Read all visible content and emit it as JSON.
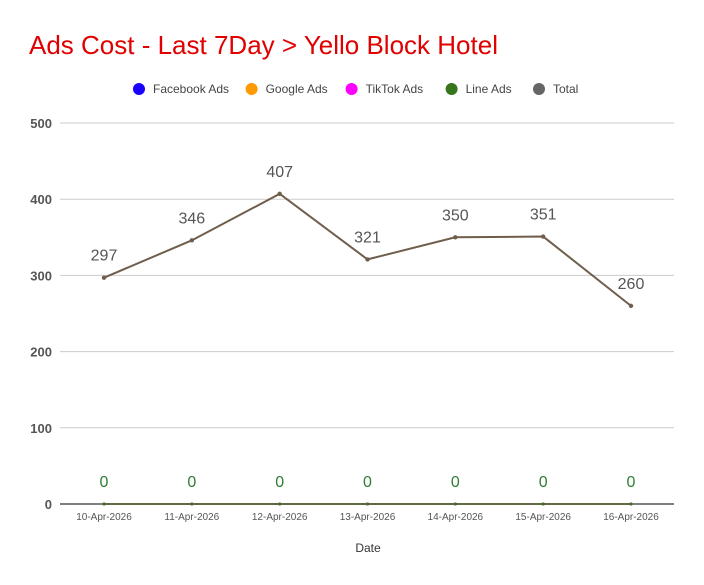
{
  "title": "Ads Cost - Last 7Day > Yello Block Hotel",
  "colors": {
    "title": "#e00000",
    "grid": "#cccccc",
    "axis": "#333333",
    "total_line": "#6f5e4b",
    "zero_label": "#2e7d32",
    "total_label": "#555555"
  },
  "chart_data": {
    "type": "line",
    "title": "Ads Cost - Last 7Day > Yello Block Hotel",
    "xlabel": "Date",
    "ylabel": "",
    "ylim": [
      0,
      500
    ],
    "yticks": [
      0,
      100,
      200,
      300,
      400,
      500
    ],
    "grid": true,
    "legend_position": "top",
    "categories": [
      "10-Apr-2026",
      "11-Apr-2026",
      "12-Apr-2026",
      "13-Apr-2026",
      "14-Apr-2026",
      "15-Apr-2026",
      "16-Apr-2026"
    ],
    "series": [
      {
        "name": "Facebook Ads",
        "color": "#1a00ff",
        "values": [
          0,
          0,
          0,
          0,
          0,
          0,
          0
        ]
      },
      {
        "name": "Google Ads",
        "color": "#ff9900",
        "values": [
          0,
          0,
          0,
          0,
          0,
          0,
          0
        ]
      },
      {
        "name": "TikTok Ads",
        "color": "#ff00ff",
        "values": [
          0,
          0,
          0,
          0,
          0,
          0,
          0
        ]
      },
      {
        "name": "Line Ads",
        "color": "#38761d",
        "values": [
          0,
          0,
          0,
          0,
          0,
          0,
          0
        ]
      },
      {
        "name": "Total",
        "color": "#666666",
        "values": [
          297,
          346,
          407,
          321,
          350,
          351,
          260
        ]
      }
    ],
    "data_labels": {
      "total": [
        "297",
        "346",
        "407",
        "321",
        "350",
        "351",
        "260"
      ],
      "zero": [
        "0",
        "0",
        "0",
        "0",
        "0",
        "0",
        "0"
      ]
    }
  }
}
